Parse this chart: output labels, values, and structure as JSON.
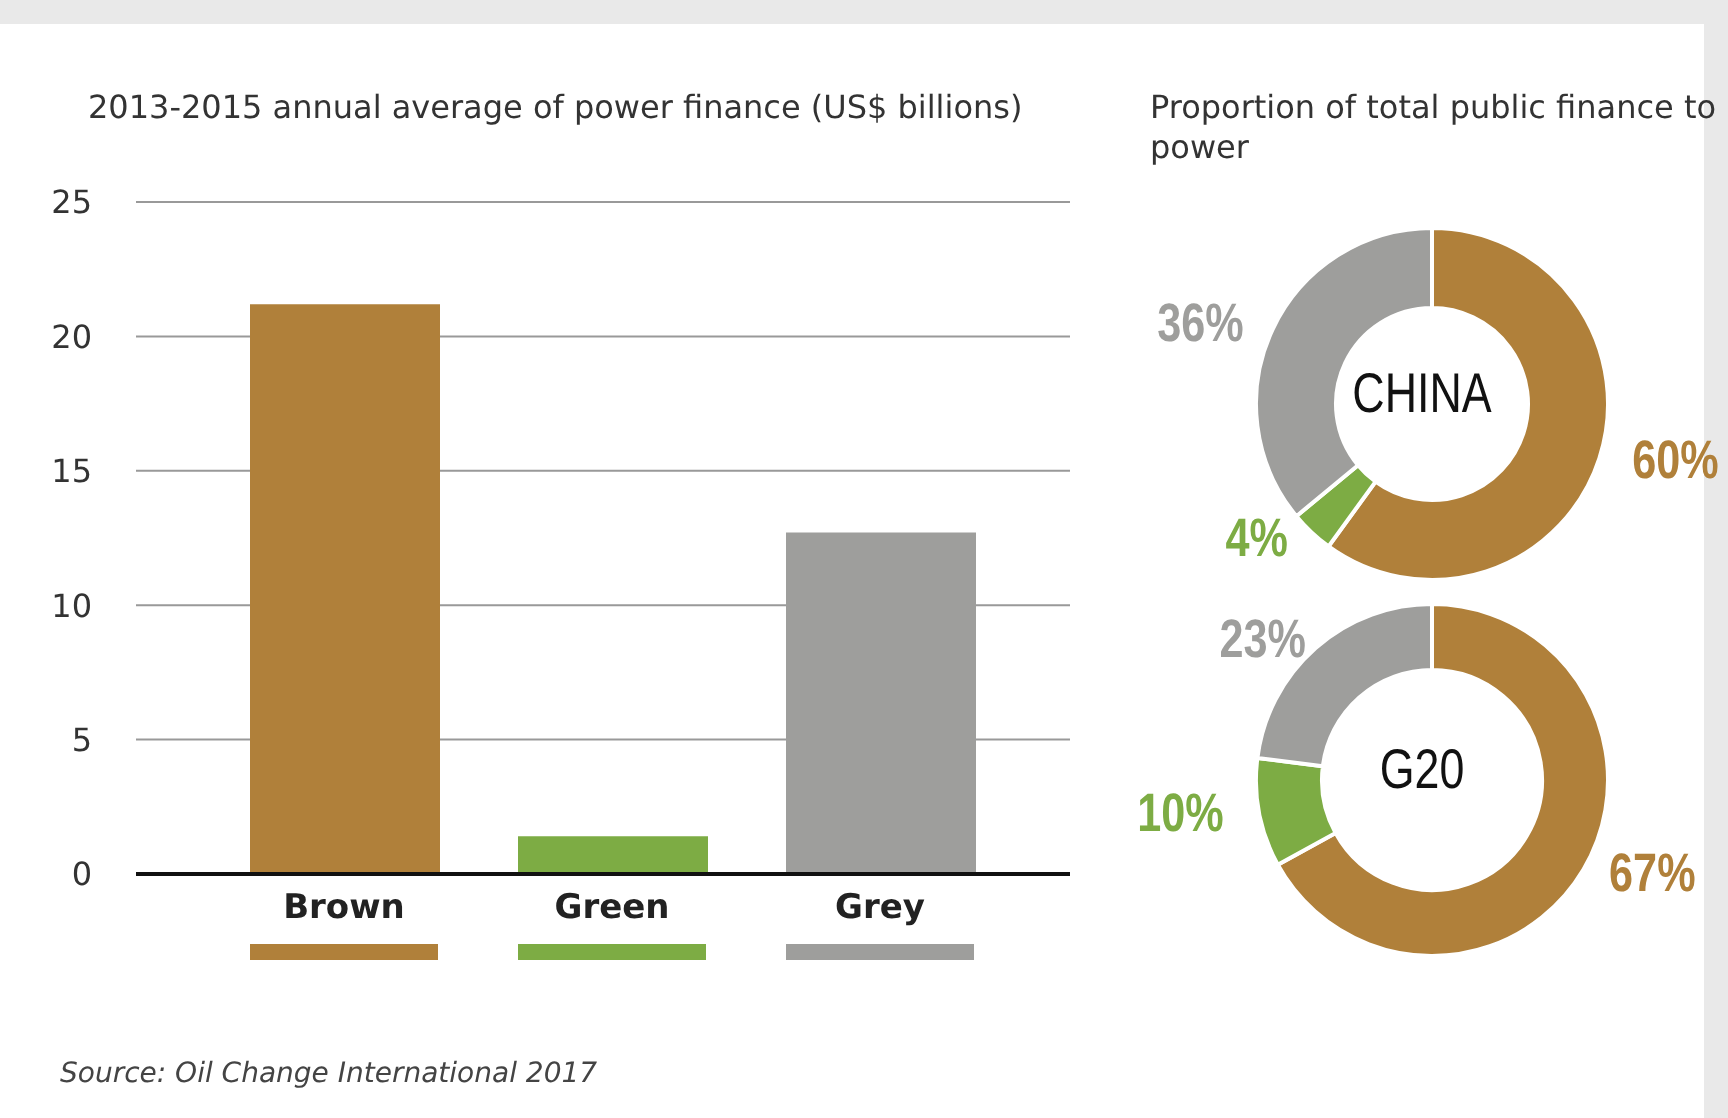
{
  "chart_data": [
    {
      "type": "bar",
      "title": "2013-2015 annual average of power finance (US$ billions)",
      "categories": [
        "Brown",
        "Green",
        "Grey"
      ],
      "values": [
        21.2,
        1.4,
        12.7
      ],
      "colors": [
        "#b0803a",
        "#7dac44",
        "#9e9e9c"
      ],
      "ylim": [
        0,
        25
      ],
      "yticks": [
        0,
        5,
        10,
        15,
        20,
        25
      ],
      "grid": "y",
      "legend": false,
      "annotations": [
        "Source: Oil Change International 2017"
      ]
    },
    {
      "type": "donut",
      "title": "Proportion of total public finance to power",
      "subtitle": "CHINA",
      "categories": [
        null,
        null,
        null
      ],
      "values": [
        60,
        4,
        36
      ],
      "colors": [
        "#b0803a",
        "#7dac44",
        "#9e9e9c"
      ],
      "value_labels": [
        "60%",
        "4%",
        "36%"
      ]
    },
    {
      "type": "donut",
      "title": "G20",
      "categories": [
        null,
        null,
        null
      ],
      "values": [
        67,
        10,
        23
      ],
      "colors": [
        "#b0803a",
        "#7dac44",
        "#9e9e9c"
      ],
      "value_labels": [
        "67%",
        "10%",
        "23%"
      ]
    }
  ]
}
